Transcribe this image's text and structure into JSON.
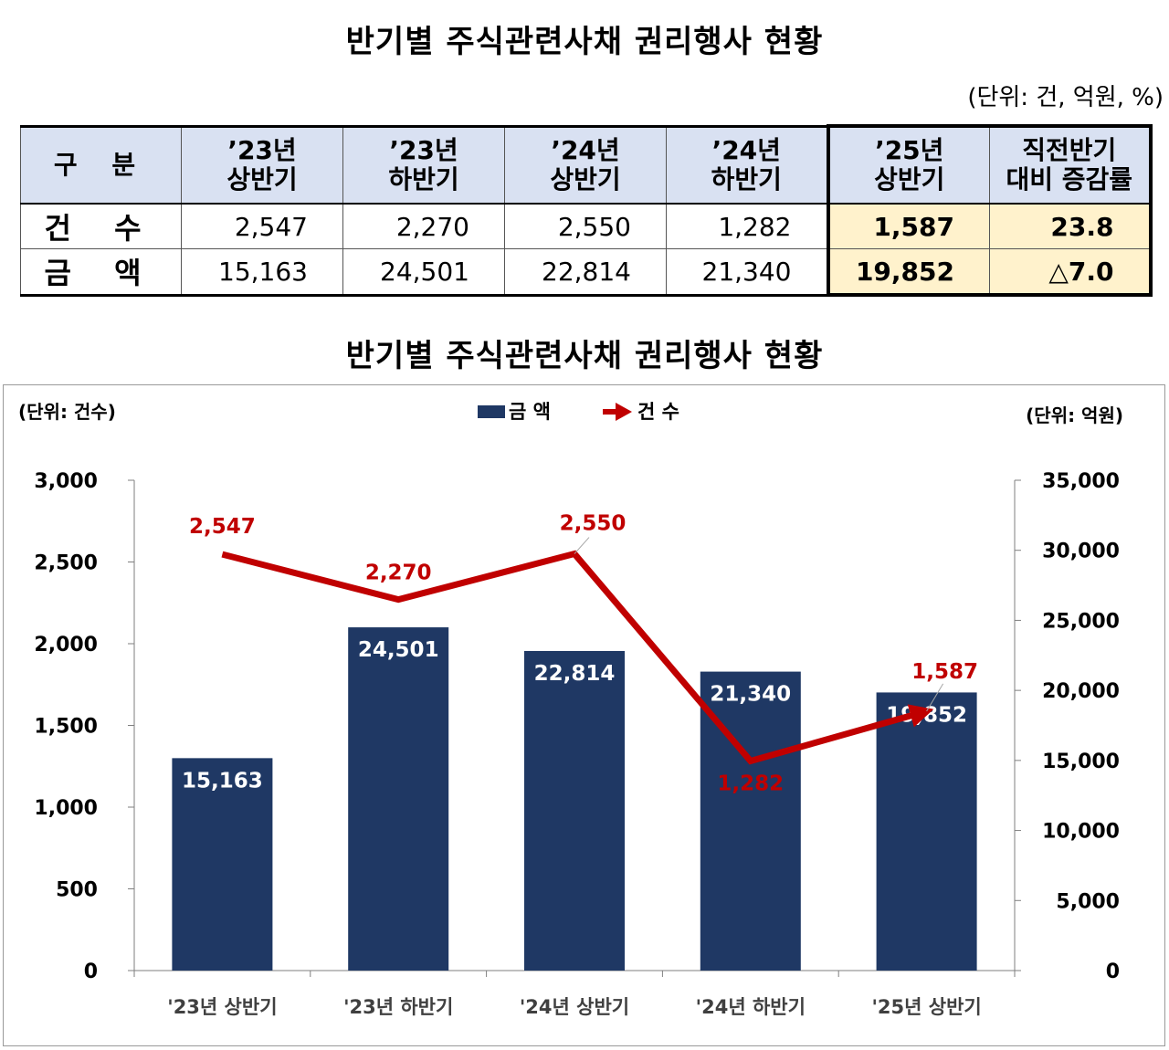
{
  "title": "반기별 주식관련사채 권리행사 현황",
  "table": {
    "unit": "(단위: 건, 억원, %)",
    "header": [
      "구  분",
      "’23년\n상반기",
      "’23년\n하반기",
      "’24년\n상반기",
      "’24년\n하반기",
      "’25년\n상반기",
      "직전반기\n대비 증감률"
    ],
    "rows": [
      {
        "label": "건 수",
        "values": [
          "2,547",
          "2,270",
          "2,550",
          "1,282",
          "1,587",
          "23.8"
        ]
      },
      {
        "label": "금 액",
        "values": [
          "15,163",
          "24,501",
          "22,814",
          "21,340",
          "19,852",
          "△7.0"
        ]
      }
    ]
  },
  "chart_title": "반기별 주식관련사채 권리행사 현황",
  "chart_data": {
    "type": "bar",
    "categories": [
      "'23년 상반기",
      "'23년 하반기",
      "'24년 상반기",
      "'24년 하반기",
      "'25년 상반기"
    ],
    "series": [
      {
        "name": "금 액",
        "kind": "bar",
        "axis": "right",
        "color": "#1f3864",
        "values": [
          15163,
          24501,
          22814,
          21340,
          19852
        ]
      },
      {
        "name": "건 수",
        "kind": "line",
        "axis": "left",
        "color": "#c00000",
        "values": [
          2547,
          2270,
          2550,
          1282,
          1587
        ]
      }
    ],
    "left_axis": {
      "unit_label": "(단위: 건수)",
      "ylim": [
        0,
        3000
      ],
      "ticks": [
        0,
        500,
        1000,
        1500,
        2000,
        2500,
        3000
      ]
    },
    "right_axis": {
      "unit_label": "(단위: 억원)",
      "ylim": [
        0,
        35000
      ],
      "ticks": [
        0,
        5000,
        10000,
        15000,
        20000,
        25000,
        30000,
        35000
      ]
    },
    "legend_position": "top-center",
    "grid": false
  }
}
